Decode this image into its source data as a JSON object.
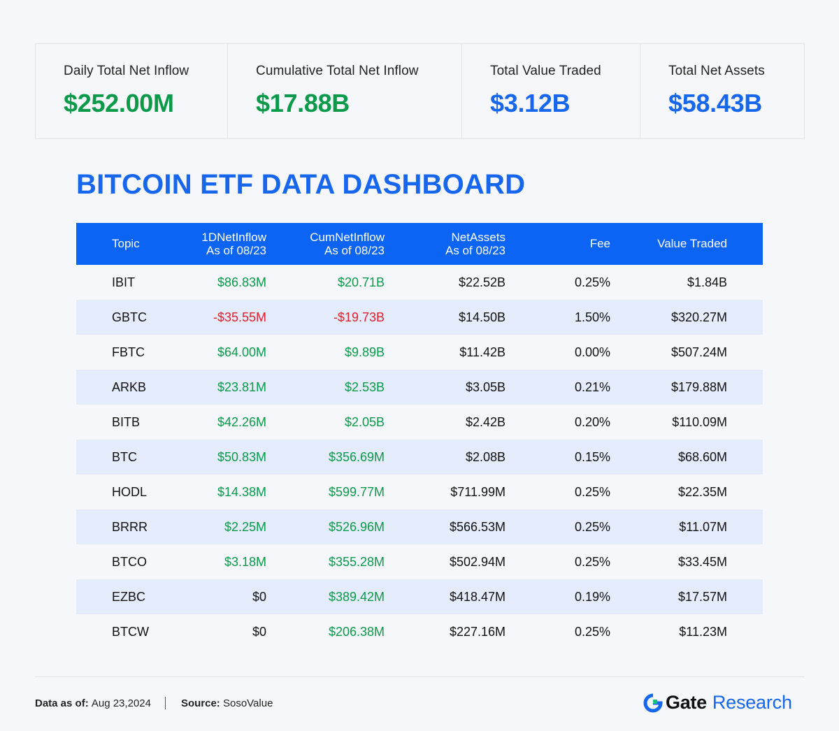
{
  "stats": [
    {
      "label": "Daily Total Net Inflow",
      "value": "$252.00M",
      "color": "green"
    },
    {
      "label": "Cumulative Total Net Inflow",
      "value": "$17.88B",
      "color": "green"
    },
    {
      "label": "Total Value Traded",
      "value": "$3.12B",
      "color": "blue"
    },
    {
      "label": "Total Net Assets",
      "value": "$58.43B",
      "color": "blue"
    }
  ],
  "title": "BITCOIN ETF DATA DASHBOARD",
  "table": {
    "headers": {
      "topic": "Topic",
      "inflow": [
        "1DNetInflow",
        "As of 08/23"
      ],
      "cum": [
        "CumNetInflow",
        "As of 08/23"
      ],
      "assets": [
        "NetAssets",
        "As of 08/23"
      ],
      "fee": "Fee",
      "traded": "Value Traded"
    },
    "rows": [
      {
        "topic": "IBIT",
        "inflow": "$86.83M",
        "cum": "$20.71B",
        "assets": "$22.52B",
        "fee": "0.25%",
        "traded": "$1.84B"
      },
      {
        "topic": "GBTC",
        "inflow": "-$35.55M",
        "cum": "-$19.73B",
        "assets": "$14.50B",
        "fee": "1.50%",
        "traded": "$320.27M"
      },
      {
        "topic": "FBTC",
        "inflow": "$64.00M",
        "cum": "$9.89B",
        "assets": "$11.42B",
        "fee": "0.00%",
        "traded": "$507.24M"
      },
      {
        "topic": "ARKB",
        "inflow": "$23.81M",
        "cum": "$2.53B",
        "assets": "$3.05B",
        "fee": "0.21%",
        "traded": "$179.88M"
      },
      {
        "topic": "BITB",
        "inflow": "$42.26M",
        "cum": "$2.05B",
        "assets": "$2.42B",
        "fee": "0.20%",
        "traded": "$110.09M"
      },
      {
        "topic": "BTC",
        "inflow": "$50.83M",
        "cum": "$356.69M",
        "assets": "$2.08B",
        "fee": "0.15%",
        "traded": "$68.60M"
      },
      {
        "topic": "HODL",
        "inflow": "$14.38M",
        "cum": "$599.77M",
        "assets": "$711.99M",
        "fee": "0.25%",
        "traded": "$22.35M"
      },
      {
        "topic": "BRRR",
        "inflow": "$2.25M",
        "cum": "$526.96M",
        "assets": "$566.53M",
        "fee": "0.25%",
        "traded": "$11.07M"
      },
      {
        "topic": "BTCO",
        "inflow": "$3.18M",
        "cum": "$355.28M",
        "assets": "$502.94M",
        "fee": "0.25%",
        "traded": "$33.45M"
      },
      {
        "topic": "EZBC",
        "inflow": "$0",
        "cum": "$389.42M",
        "assets": "$418.47M",
        "fee": "0.19%",
        "traded": "$17.57M"
      },
      {
        "topic": "BTCW",
        "inflow": "$0",
        "cum": "$206.38M",
        "assets": "$227.16M",
        "fee": "0.25%",
        "traded": "$11.23M"
      }
    ]
  },
  "footer": {
    "data_label": "Data as of:",
    "data_value": "Aug 23,2024",
    "source_label": "Source:",
    "source_value": "SosoValue"
  },
  "brand": {
    "name": "Gate",
    "sub": "Research",
    "icon": "gate-logo-icon",
    "accent": "#1766ee"
  },
  "colors": {
    "green": "#0a9a4a",
    "blue": "#1766ee",
    "red": "#e0202e",
    "header_bg": "#0c64f5",
    "row_alt": "#e4ecfb"
  }
}
